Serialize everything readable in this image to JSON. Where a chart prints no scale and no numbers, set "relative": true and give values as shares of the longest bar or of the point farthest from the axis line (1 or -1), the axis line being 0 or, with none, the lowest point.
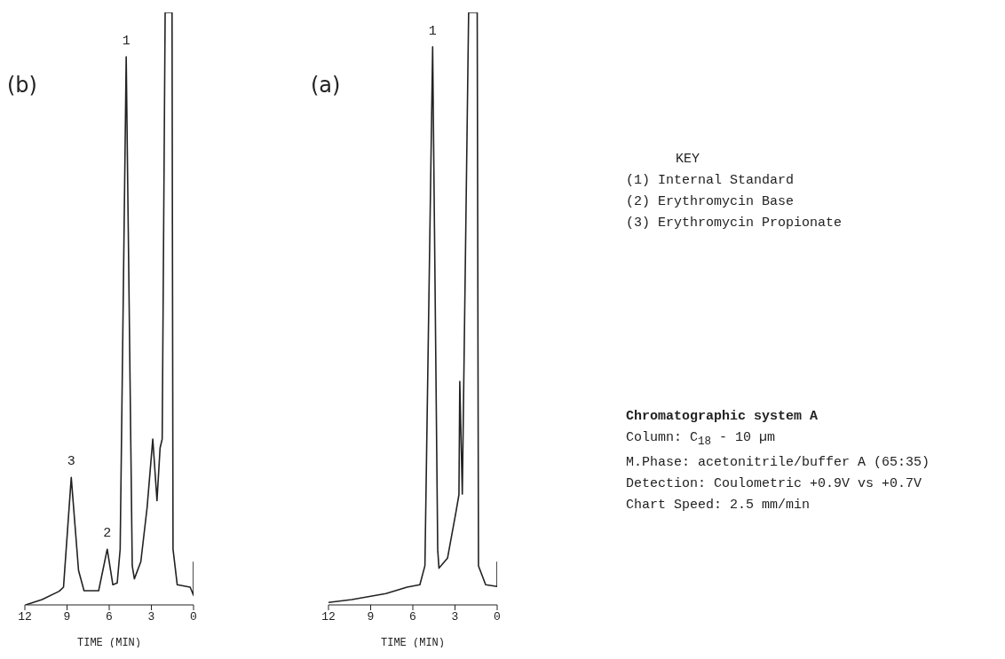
{
  "chart_data": [
    {
      "type": "line",
      "title": "(b)",
      "xlabel": "TIME (MIN)",
      "relative": true,
      "xlim": [
        12,
        0
      ],
      "xticks": [
        12,
        9,
        6,
        3,
        0
      ],
      "grid": false,
      "legend": false,
      "marker": "none",
      "line_style": "solid",
      "series": [
        {
          "color": "#222222",
          "x": [
            11.94,
            10.78,
            9.56,
            9.25,
            8.7,
            8.18,
            7.79,
            6.75,
            6.14,
            5.74,
            5.43,
            5.22,
            4.79,
            4.36,
            4.21,
            3.75,
            3.3,
            2.9,
            2.6,
            2.38,
            2.23,
            2.02,
            1.53,
            1.46,
            1.16,
            0.24,
            0,
            0
          ],
          "values": [
            0,
            0.009,
            0.023,
            0.03,
            0.215,
            0.058,
            0.024,
            0.024,
            0.094,
            0.034,
            0.037,
            0.094,
            0.925,
            0.066,
            0.044,
            0.073,
            0.165,
            0.28,
            0.176,
            0.265,
            0.28,
            1,
            1,
            0.094,
            0.034,
            0.03,
            0.016,
            0.073
          ]
        }
      ],
      "annotations": [
        {
          "text": "3",
          "x": 8.7,
          "y": 0.215
        },
        {
          "text": "2",
          "x": 6.14,
          "y": 0.094
        },
        {
          "text": "1",
          "x": 4.79,
          "y": 0.925
        }
      ]
    },
    {
      "type": "line",
      "title": "(a)",
      "xlabel": "TIME (MIN)",
      "relative": true,
      "xlim": [
        12,
        0
      ],
      "xticks": [
        12,
        9,
        6,
        3,
        0
      ],
      "grid": false,
      "legend": false,
      "marker": "none",
      "line_style": "solid",
      "series": [
        {
          "color": "#222222",
          "x": [
            12,
            10.34,
            7.92,
            6.41,
            5.5,
            5.14,
            4.59,
            4.23,
            4.14,
            3.53,
            2.93,
            2.72,
            2.66,
            2.48,
            2.03,
            1.42,
            1.33,
            0.82,
            0,
            0
          ],
          "values": [
            0.004,
            0.009,
            0.019,
            0.03,
            0.034,
            0.066,
            0.942,
            0.093,
            0.062,
            0.079,
            0.157,
            0.186,
            0.377,
            0.187,
            1,
            1,
            0.066,
            0.034,
            0.031,
            0.073
          ]
        }
      ],
      "annotations": [
        {
          "text": "1",
          "x": 4.59,
          "y": 0.942
        }
      ]
    },
    {
      "type": "other",
      "title": "KEY",
      "annotations": [
        "(1) Internal Standard",
        "(2) Erythromycin Base",
        "(3) Erythromycin Propionate"
      ]
    },
    {
      "type": "other",
      "title": "Chromatographic system A",
      "annotations": [
        "Column: C$_{18}$ - 10 µm",
        "M.Phase: acetonitrile/buffer A (65:35)",
        "Detection: Coulometric +0.9V vs +0.7V",
        "Chart Speed: 2.5 mm/min"
      ]
    }
  ]
}
